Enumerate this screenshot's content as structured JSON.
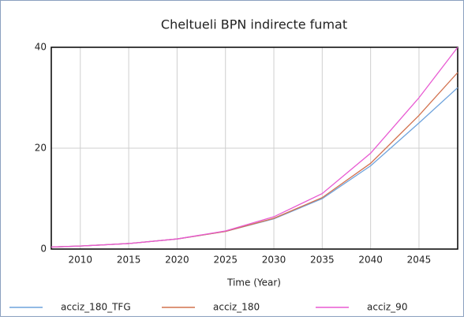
{
  "chart_data": {
    "type": "line",
    "title": "Cheltueli BPN indirecte fumat",
    "xlabel": "Time (Year)",
    "x": [
      2007,
      2010,
      2015,
      2020,
      2025,
      2030,
      2035,
      2040,
      2045,
      2049
    ],
    "series": [
      {
        "name": "acciz_180_TFG",
        "color": "#6fa3dc",
        "values": [
          0.4,
          0.6,
          1.1,
          2.0,
          3.5,
          6.0,
          10.0,
          16.5,
          25,
          32
        ]
      },
      {
        "name": "acciz_180",
        "color": "#d2724f",
        "values": [
          0.4,
          0.6,
          1.1,
          2.0,
          3.5,
          6.1,
          10.2,
          17,
          26.5,
          35
        ]
      },
      {
        "name": "acciz_90",
        "color": "#e85ad2",
        "values": [
          0.4,
          0.6,
          1.1,
          2.0,
          3.6,
          6.4,
          11,
          19,
          30,
          40
        ]
      }
    ],
    "xlim": [
      2007,
      2049
    ],
    "xticks": [
      2010,
      2015,
      2020,
      2025,
      2030,
      2035,
      2040,
      2045
    ],
    "ylim": [
      0,
      40
    ],
    "yticks": [
      0,
      20,
      40
    ],
    "grid": true
  }
}
